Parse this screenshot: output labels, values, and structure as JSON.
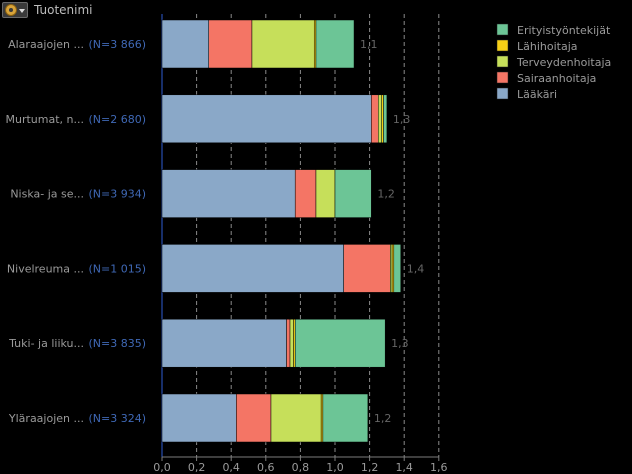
{
  "header": {
    "title": "Tuotenimi"
  },
  "colors": {
    "Lääkäri": "#8aa8c8",
    "Sairaanhoitaja": "#f47565",
    "Terveydenhoitaja": "#c6df5a",
    "Lähihoitaja": "#f6cf16",
    "Erityistyöntekijät": "#6cc596",
    "axis": "#7d7d7d",
    "label": "#9a9a9a",
    "count": "#3f68b5"
  },
  "chart_data": {
    "type": "bar",
    "orientation": "horizontal",
    "stacked": true,
    "xlim": [
      0,
      1.6
    ],
    "xticks": [
      "0,0",
      "0,2",
      "0,4",
      "0,6",
      "0,8",
      "1,0",
      "1,2",
      "1,4",
      "1,6"
    ],
    "grid": true,
    "legend_position": "top-right",
    "legend": [
      "Erityistyöntekijät",
      "Lähihoitaja",
      "Terveydenhoitaja",
      "Sairaanhoitaja",
      "Lääkäri"
    ],
    "categories": [
      "Alaraajojen ...",
      "Murtumat, n...",
      "Niska- ja se...",
      "Nivelreuma ...",
      "Tuki- ja liiku...",
      "Yläraajojen ..."
    ],
    "counts": [
      "(N=3 866)",
      "(N=2 680)",
      "(N=3 934)",
      "(N=1 015)",
      "(N=3 835)",
      "(N=3 324)"
    ],
    "totals": [
      "1,1",
      "1,3",
      "1,2",
      "1,4",
      "1,3",
      "1,2"
    ],
    "series": [
      {
        "name": "Lääkäri",
        "values": [
          0.27,
          1.21,
          0.77,
          1.05,
          0.72,
          0.43
        ]
      },
      {
        "name": "Sairaanhoitaja",
        "values": [
          0.25,
          0.04,
          0.12,
          0.27,
          0.02,
          0.2
        ]
      },
      {
        "name": "Terveydenhoitaja",
        "values": [
          0.36,
          0.02,
          0.11,
          0.01,
          0.02,
          0.29
        ]
      },
      {
        "name": "Lähihoitaja",
        "values": [
          0.01,
          0.01,
          0.0,
          0.01,
          0.01,
          0.01
        ]
      },
      {
        "name": "Erityistyöntekijät",
        "values": [
          0.22,
          0.02,
          0.21,
          0.04,
          0.52,
          0.26
        ]
      }
    ]
  }
}
